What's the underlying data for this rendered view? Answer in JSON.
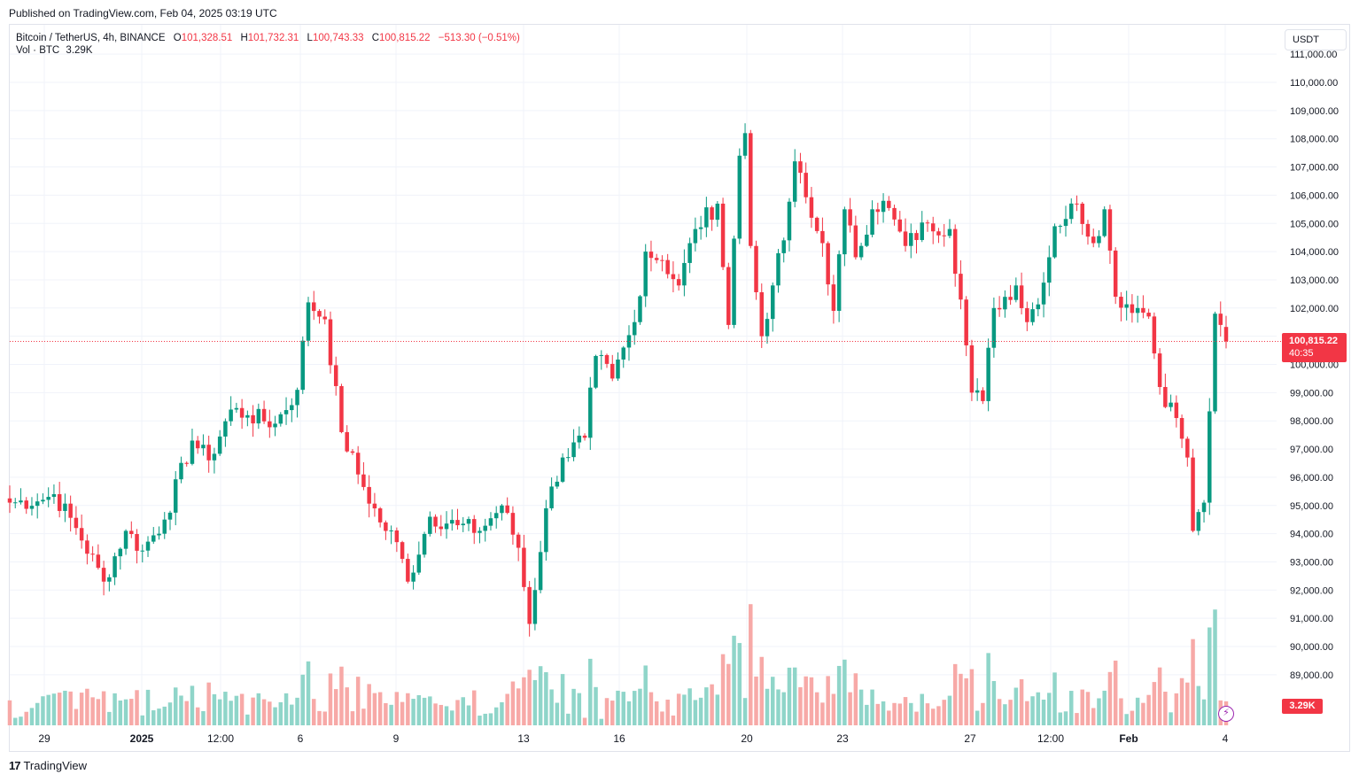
{
  "header": {
    "published": "Published on TradingView.com, Feb 04, 2025 03:19 UTC"
  },
  "legend": {
    "symbol": "Bitcoin / TetherUS, 4h, BINANCE",
    "o_label": "O",
    "o": "101,328.51",
    "h_label": "H",
    "h": "101,732.31",
    "l_label": "L",
    "l": "100,743.33",
    "c_label": "C",
    "c": "100,815.22",
    "change": "−513.30 (−0.51%)",
    "vol_label": "Vol · BTC",
    "vol_value": "3.29K"
  },
  "currency": "USDT",
  "last_price": {
    "price": "100,815.22",
    "countdown": "40:35"
  },
  "volume_tag": "3.29K",
  "footer": {
    "brand": "TradingView",
    "logo_icon": "tradingview-logo-icon"
  },
  "colors": {
    "up": "#089981",
    "down": "#f23645",
    "up_volume": "#8fd5c9",
    "down_volume": "#f7a9a7",
    "grid": "#f0f3fa"
  },
  "chart_data": {
    "type": "candlestick",
    "title": "Bitcoin / TetherUS, 4h, BINANCE",
    "y_axis": {
      "ylim": [
        88000,
        111000
      ],
      "ticks": [
        "89,000.00",
        "90,000.00",
        "91,000.00",
        "92,000.00",
        "93,000.00",
        "94,000.00",
        "95,000.00",
        "96,000.00",
        "97,000.00",
        "98,000.00",
        "99,000.00",
        "100,000.00",
        "101,000.00",
        "102,000.00",
        "103,000.00",
        "104,000.00",
        "105,000.00",
        "106,000.00",
        "107,000.00",
        "108,000.00",
        "109,000.00",
        "110,000.00",
        "111,000.00"
      ]
    },
    "x_axis": {
      "ticks": [
        "29",
        "2025",
        "12:00",
        "6",
        "9",
        "13",
        "16",
        "20",
        "23",
        "27",
        "12:00",
        "Feb",
        "4"
      ]
    },
    "grid": true,
    "waypoints": [
      {
        "i": 0,
        "p": 95100
      },
      {
        "i": 6,
        "p": 95200
      },
      {
        "i": 8,
        "p": 95400
      },
      {
        "i": 12,
        "p": 94200
      },
      {
        "i": 17,
        "p": 92300
      },
      {
        "i": 21,
        "p": 94100
      },
      {
        "i": 24,
        "p": 93400
      },
      {
        "i": 28,
        "p": 94500
      },
      {
        "i": 33,
        "p": 97300
      },
      {
        "i": 36,
        "p": 96600
      },
      {
        "i": 40,
        "p": 98400
      },
      {
        "i": 43,
        "p": 98200
      },
      {
        "i": 48,
        "p": 97900
      },
      {
        "i": 52,
        "p": 99100
      },
      {
        "i": 54,
        "p": 102200
      },
      {
        "i": 57,
        "p": 101600
      },
      {
        "i": 60,
        "p": 97600
      },
      {
        "i": 63,
        "p": 96100
      },
      {
        "i": 67,
        "p": 94400
      },
      {
        "i": 70,
        "p": 93700
      },
      {
        "i": 72,
        "p": 92300
      },
      {
        "i": 76,
        "p": 94600
      },
      {
        "i": 81,
        "p": 94300
      },
      {
        "i": 85,
        "p": 94100
      },
      {
        "i": 89,
        "p": 95000
      },
      {
        "i": 92,
        "p": 93500
      },
      {
        "i": 94,
        "p": 90800
      },
      {
        "i": 97,
        "p": 94900
      },
      {
        "i": 100,
        "p": 96700
      },
      {
        "i": 104,
        "p": 97400
      },
      {
        "i": 106,
        "p": 100300
      },
      {
        "i": 109,
        "p": 99500
      },
      {
        "i": 113,
        "p": 101500
      },
      {
        "i": 115,
        "p": 104000
      },
      {
        "i": 118,
        "p": 103700
      },
      {
        "i": 121,
        "p": 102800
      },
      {
        "i": 124,
        "p": 104800
      },
      {
        "i": 128,
        "p": 105700
      },
      {
        "i": 130,
        "p": 101400
      },
      {
        "i": 132,
        "p": 107400
      },
      {
        "i": 133,
        "p": 108200
      },
      {
        "i": 134,
        "p": 104200
      },
      {
        "i": 136,
        "p": 101000
      },
      {
        "i": 138,
        "p": 102800
      },
      {
        "i": 140,
        "p": 104400
      },
      {
        "i": 142,
        "p": 107200
      },
      {
        "i": 145,
        "p": 105200
      },
      {
        "i": 147,
        "p": 104300
      },
      {
        "i": 149,
        "p": 101900
      },
      {
        "i": 151,
        "p": 105500
      },
      {
        "i": 153,
        "p": 103800
      },
      {
        "i": 156,
        "p": 105500
      },
      {
        "i": 158,
        "p": 105800
      },
      {
        "i": 162,
        "p": 104200
      },
      {
        "i": 166,
        "p": 105000
      },
      {
        "i": 170,
        "p": 104800
      },
      {
        "i": 172,
        "p": 102300
      },
      {
        "i": 174,
        "p": 99000
      },
      {
        "i": 176,
        "p": 98700
      },
      {
        "i": 178,
        "p": 102000
      },
      {
        "i": 182,
        "p": 102800
      },
      {
        "i": 184,
        "p": 101500
      },
      {
        "i": 187,
        "p": 102900
      },
      {
        "i": 189,
        "p": 104900
      },
      {
        "i": 193,
        "p": 105700
      },
      {
        "i": 196,
        "p": 104300
      },
      {
        "i": 198,
        "p": 105500
      },
      {
        "i": 200,
        "p": 102400
      },
      {
        "i": 204,
        "p": 102000
      },
      {
        "i": 206,
        "p": 101700
      },
      {
        "i": 208,
        "p": 99200
      },
      {
        "i": 211,
        "p": 98100
      },
      {
        "i": 213,
        "p": 96700
      },
      {
        "i": 214,
        "p": 94100
      },
      {
        "i": 216,
        "p": 95100
      },
      {
        "i": 218,
        "p": 101800
      },
      {
        "i": 219,
        "p": 101400
      },
      {
        "i": 220,
        "p": 100815
      }
    ]
  }
}
